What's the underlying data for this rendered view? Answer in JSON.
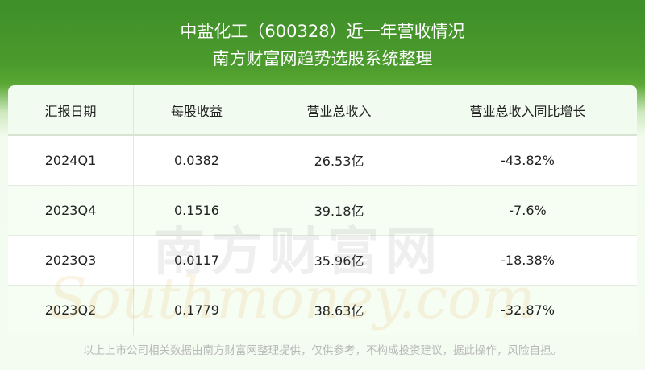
{
  "title": "中盐化工（600328）近一年营收情况",
  "subtitle": "南方财富网趋势选股系统整理",
  "table": {
    "headers": [
      "汇报日期",
      "每股收益",
      "营业总收入",
      "营业总收入同比增长"
    ],
    "rows": [
      [
        "2024Q1",
        "0.0382",
        "26.53亿",
        "-43.82%"
      ],
      [
        "2023Q4",
        "0.1516",
        "39.18亿",
        "-7.6%"
      ],
      [
        "2023Q3",
        "0.0117",
        "35.96亿",
        "-18.38%"
      ],
      [
        "2023Q2",
        "0.1779",
        "38.63亿",
        "-32.87%"
      ]
    ]
  },
  "watermark": {
    "cn": "南方财富网",
    "en": "Southmoney.com"
  },
  "footer": "以上上市公司相关数据由南方财富网整理提供，仅供参考，不构成投资建议，据此操作，风险自担。",
  "colors": {
    "header_green": "#4a9a2c",
    "page_bg": "#f4fcf1"
  }
}
